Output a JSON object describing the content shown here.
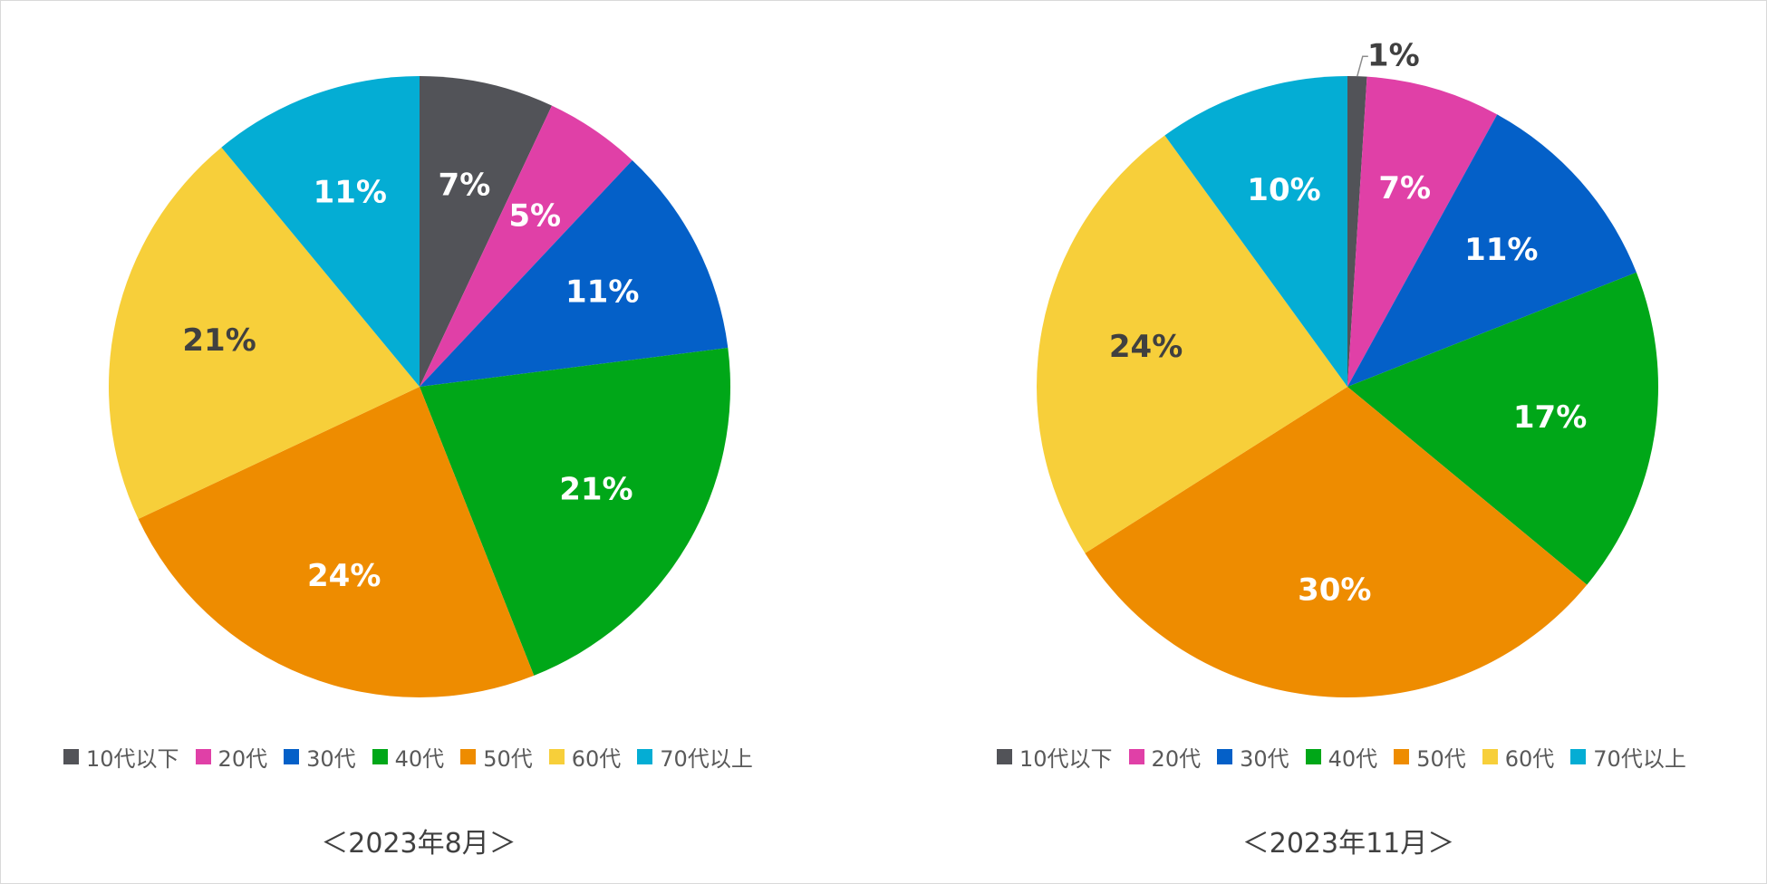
{
  "chart_data": [
    {
      "type": "pie",
      "caption": "＜2023年8月＞",
      "categories": [
        "10代以下",
        "20代",
        "30代",
        "40代",
        "50代",
        "60代",
        "70代以上"
      ],
      "values": [
        7,
        5,
        11,
        21,
        24,
        21,
        11
      ],
      "data_labels": [
        "7%",
        "5%",
        "11%",
        "21%",
        "24%",
        "21%",
        "11%"
      ],
      "colors": [
        "#525358",
        "#E040A7",
        "#0460C8",
        "#00A718",
        "#EE8C00",
        "#F7CF3A",
        "#04ADD4"
      ],
      "label_colors": [
        "#ffffff",
        "#ffffff",
        "#ffffff",
        "#ffffff",
        "#ffffff",
        "#404040",
        "#ffffff"
      ],
      "legend_position": "bottom"
    },
    {
      "type": "pie",
      "caption": "＜2023年11月＞",
      "categories": [
        "10代以下",
        "20代",
        "30代",
        "40代",
        "50代",
        "60代",
        "70代以上"
      ],
      "values": [
        1,
        7,
        11,
        17,
        30,
        24,
        10
      ],
      "data_labels": [
        "1%",
        "7%",
        "11%",
        "17%",
        "30%",
        "24%",
        "10%"
      ],
      "colors": [
        "#525358",
        "#E040A7",
        "#0460C8",
        "#00A718",
        "#EE8C00",
        "#F7CF3A",
        "#04ADD4"
      ],
      "label_colors": [
        "#404040",
        "#ffffff",
        "#ffffff",
        "#ffffff",
        "#ffffff",
        "#404040",
        "#ffffff"
      ],
      "legend_position": "bottom"
    }
  ]
}
